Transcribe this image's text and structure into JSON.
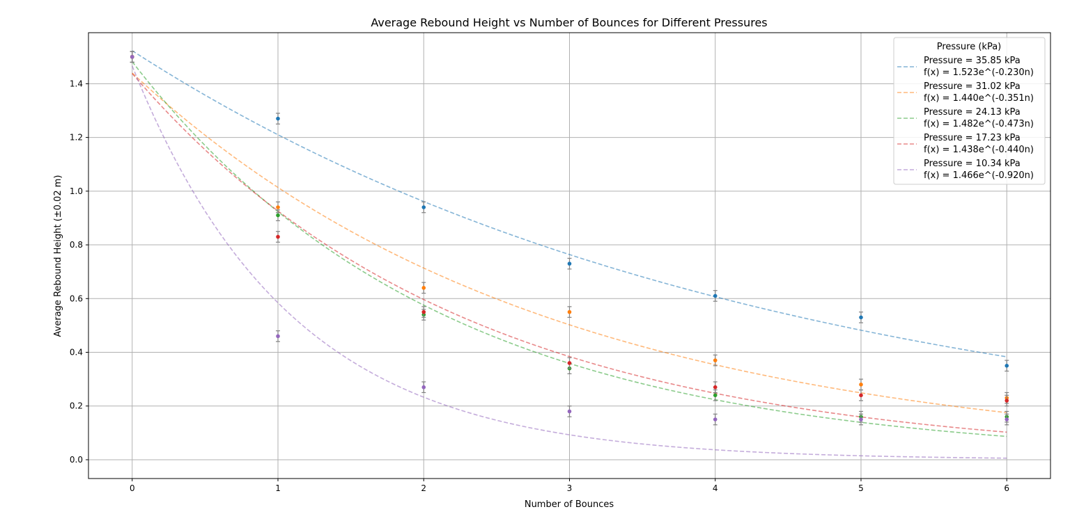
{
  "chart_data": {
    "type": "scatter",
    "title": "Average Rebound Height vs Number of Bounces for Different Pressures",
    "xlabel": "Number of Bounces",
    "ylabel": "Average Rebound Height (±0.02 m)",
    "xlim": [
      -0.3,
      6.3
    ],
    "ylim": [
      -0.07,
      1.59
    ],
    "xticks": [
      0,
      1,
      2,
      3,
      4,
      5,
      6
    ],
    "yticks": [
      0.0,
      0.2,
      0.4,
      0.6,
      0.8,
      1.0,
      1.2,
      1.4
    ],
    "ytick_format": 1,
    "grid": true,
    "error": 0.02,
    "legend": {
      "title": "Pressure (kPa)",
      "placement": "top-right"
    },
    "x": [
      0,
      1,
      2,
      3,
      4,
      5,
      6
    ],
    "series": [
      {
        "name": "Pressure = 35.85 kPa",
        "fit_label": "f(x) = 1.523e^(-0.230n)",
        "a": 1.523,
        "b": 0.23,
        "color": "#1f77b4",
        "values": [
          1.5,
          1.27,
          0.94,
          0.73,
          0.61,
          0.53,
          0.35
        ]
      },
      {
        "name": "Pressure = 31.02 kPa",
        "fit_label": "f(x) = 1.440e^(-0.351n)",
        "a": 1.44,
        "b": 0.351,
        "color": "#ff7f0e",
        "values": [
          1.5,
          0.94,
          0.64,
          0.55,
          0.37,
          0.28,
          0.23
        ]
      },
      {
        "name": "Pressure = 24.13 kPa",
        "fit_label": "f(x) = 1.482e^(-0.473n)",
        "a": 1.482,
        "b": 0.473,
        "color": "#2ca02c",
        "values": [
          1.5,
          0.91,
          0.54,
          0.34,
          0.24,
          0.16,
          0.16
        ]
      },
      {
        "name": "Pressure = 17.23 kPa",
        "fit_label": "f(x) = 1.438e^(-0.440n)",
        "a": 1.438,
        "b": 0.44,
        "color": "#d62728",
        "values": [
          1.5,
          0.83,
          0.55,
          0.36,
          0.27,
          0.24,
          0.22
        ]
      },
      {
        "name": "Pressure = 10.34 kPa",
        "fit_label": "f(x) = 1.466e^(-0.920n)",
        "a": 1.466,
        "b": 0.92,
        "color": "#9467bd",
        "values": [
          1.5,
          0.46,
          0.27,
          0.18,
          0.15,
          0.15,
          0.15
        ]
      }
    ]
  }
}
